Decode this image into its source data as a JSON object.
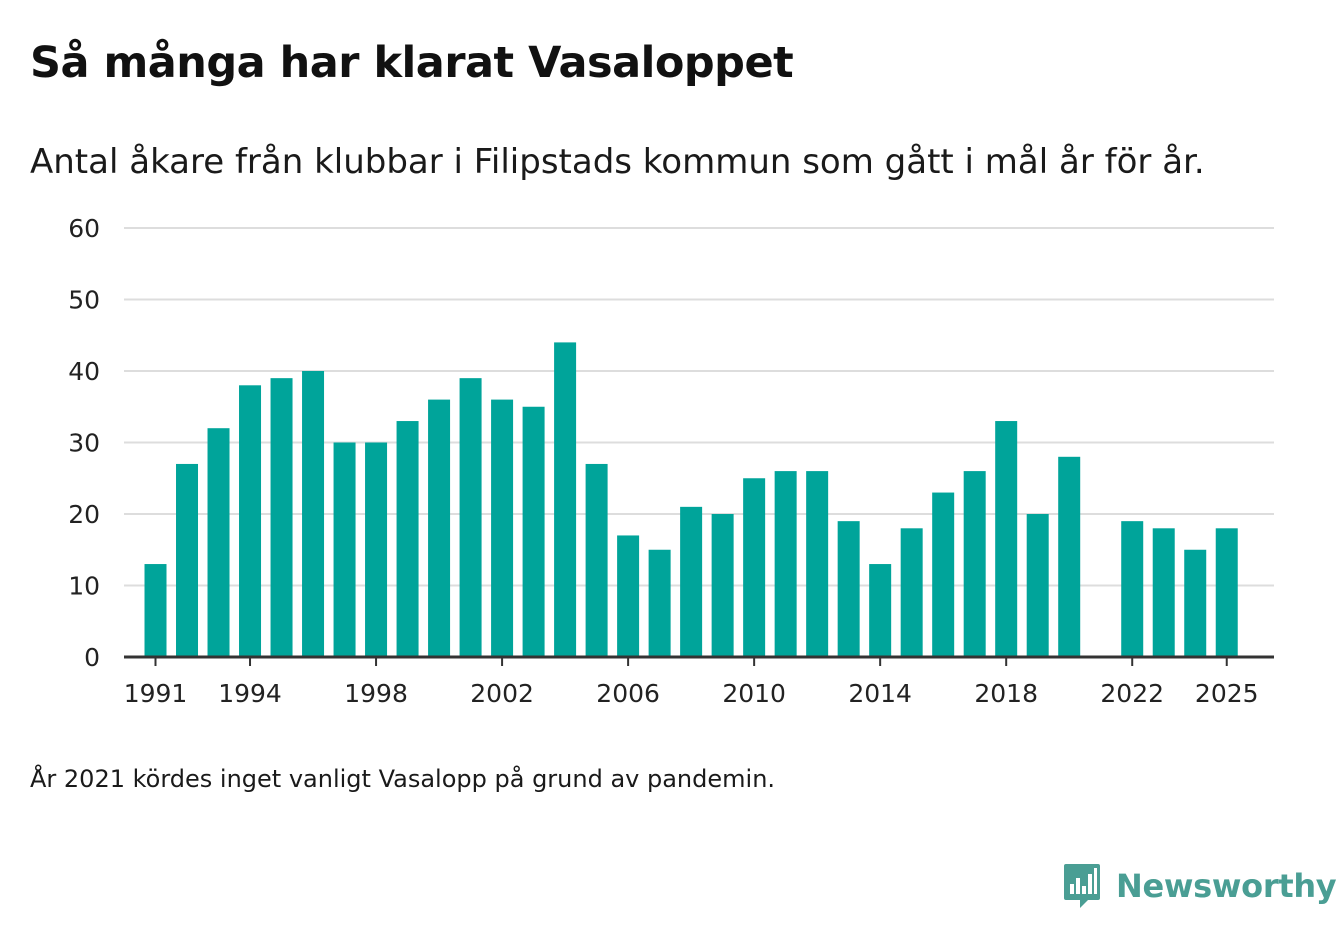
{
  "header": {
    "title": "Så många har klarat Vasaloppet",
    "subtitle": "Antal åkare från klubbar i Filipstads kommun som gått i mål år för år."
  },
  "footer": {
    "note": "År 2021 kördes inget vanligt Vasalopp på grund av pandemin.",
    "brand": "Newsworthy"
  },
  "colors": {
    "bar": "#00a49a",
    "grid": "#dddddd",
    "axis": "#333333",
    "brand": "#4a9e94"
  },
  "chart_data": {
    "type": "bar",
    "title": "Så många har klarat Vasaloppet",
    "subtitle": "Antal åkare från klubbar i Filipstads kommun som gått i mål år för år.",
    "xlabel": "",
    "ylabel": "",
    "ylim": [
      0,
      60
    ],
    "yticks": [
      0,
      10,
      20,
      30,
      40,
      50,
      60
    ],
    "xlim": [
      1990,
      2026.5
    ],
    "xticks": [
      1991,
      1994,
      1998,
      2002,
      2006,
      2010,
      2014,
      2018,
      2022,
      2025
    ],
    "grid": true,
    "categories": [
      1991,
      1992,
      1993,
      1994,
      1995,
      1996,
      1997,
      1998,
      1999,
      2000,
      2001,
      2002,
      2003,
      2004,
      2005,
      2006,
      2007,
      2008,
      2009,
      2010,
      2011,
      2012,
      2013,
      2014,
      2015,
      2016,
      2017,
      2018,
      2019,
      2020,
      2022,
      2023,
      2024,
      2025
    ],
    "values": [
      13,
      27,
      32,
      38,
      39,
      40,
      30,
      30,
      33,
      36,
      39,
      36,
      35,
      44,
      27,
      17,
      15,
      21,
      20,
      25,
      26,
      26,
      19,
      13,
      18,
      23,
      26,
      33,
      20,
      28,
      19,
      18,
      15,
      18
    ]
  }
}
